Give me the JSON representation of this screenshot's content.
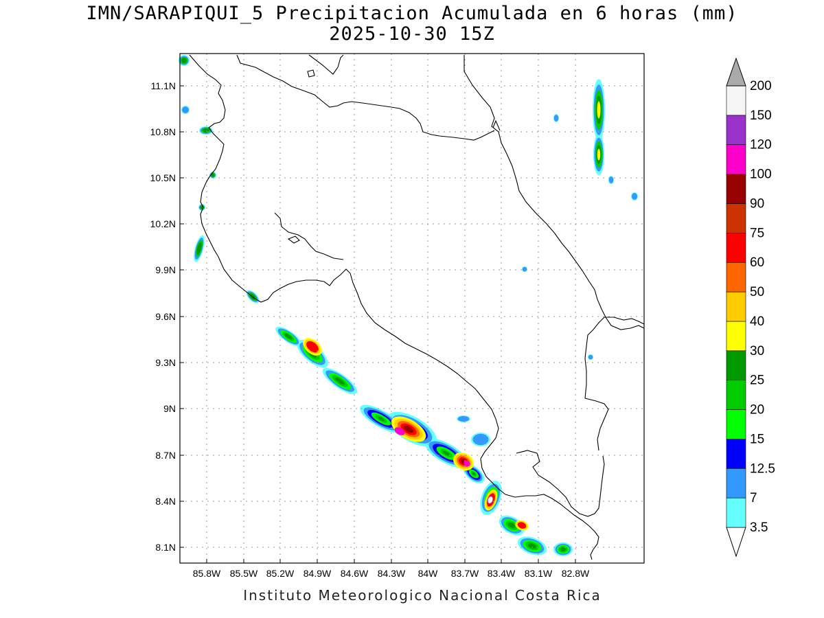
{
  "title": {
    "line1": "IMN/SARAPIQUI_5 Precipitacion Acumulada en 6 horas (mm)",
    "line2": "2025-10-30 15Z"
  },
  "footer": "Instituto Meteorologico Nacional Costa Rica",
  "map": {
    "lon_range": [
      -86.0,
      -82.6
    ],
    "lat_range": [
      8.0,
      11.3
    ],
    "lat_ticks": [
      "11.1N",
      "10.8N",
      "10.5N",
      "10.2N",
      "9.9N",
      "9.6N",
      "9.3N",
      "9N",
      "8.7N",
      "8.4N",
      "8.1N"
    ],
    "lon_ticks": [
      "85.8W",
      "85.5W",
      "85.2W",
      "84.9W",
      "84.6W",
      "84.3W",
      "84W",
      "83.7W",
      "83.4W",
      "83.1W",
      "82.8W"
    ],
    "grid": true
  },
  "legend": {
    "levels": [
      "3.5",
      "7",
      "12.5",
      "15",
      "20",
      "25",
      "30",
      "40",
      "50",
      "60",
      "75",
      "90",
      "100",
      "120",
      "150",
      "200"
    ],
    "colors": [
      "#66ffff",
      "#3399ff",
      "#0000ff",
      "#00ff00",
      "#00cc00",
      "#009900",
      "#ffff00",
      "#ffcc00",
      "#ff6600",
      "#ff0000",
      "#cc3300",
      "#990000",
      "#ff00cc",
      "#9933cc",
      "#f5f5f5",
      "#aaaaaa"
    ]
  }
}
